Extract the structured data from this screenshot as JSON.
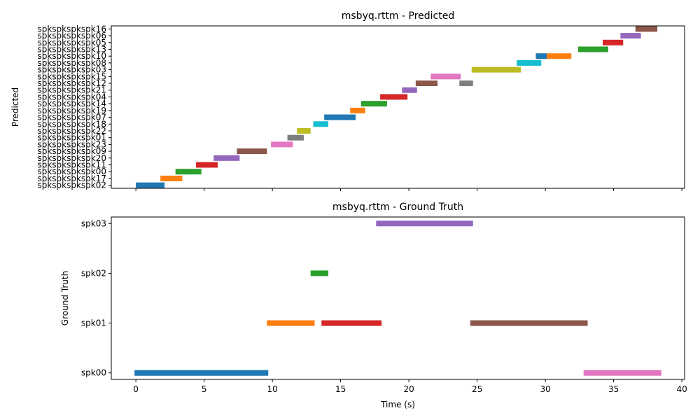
{
  "chart_data": [
    {
      "type": "timeline",
      "title": "msbyq.rttm - Predicted",
      "ylabel": "Predicted",
      "xlabel": "",
      "xlim": [
        -1.8,
        40.2
      ],
      "xticks": [
        0,
        5,
        10,
        15,
        20,
        25,
        30,
        35,
        40
      ],
      "show_xtick_labels": false,
      "categories": [
        "spkspkspkspk02",
        "spkspkspkspk17",
        "spkspkspkspk00",
        "spkspkspkspk11",
        "spkspkspkspk20",
        "spkspkspkspk09",
        "spkspkspkspk23",
        "spkspkspkspk01",
        "spkspkspkspk22",
        "spkspkspkspk18",
        "spkspkspkspk07",
        "spkspkspkspk19",
        "spkspkspkspk14",
        "spkspkspkspk04",
        "spkspkspkspk21",
        "spkspkspkspk12",
        "spkspkspkspk15",
        "spkspkspkspk03",
        "spkspkspkspk08",
        "spkspkspkspk10",
        "spkspkspkspk13",
        "spkspkspkspk05",
        "spkspkspkspk06",
        "spkspkspkspk16"
      ],
      "segments": [
        {
          "speaker": "spkspkspkspk02",
          "start": 0.0,
          "end": 2.1,
          "color": "#1f77b4"
        },
        {
          "speaker": "spkspkspkspk17",
          "start": 1.8,
          "end": 3.4,
          "color": "#ff7f0e"
        },
        {
          "speaker": "spkspkspkspk00",
          "start": 2.9,
          "end": 4.8,
          "color": "#2ca02c"
        },
        {
          "speaker": "spkspkspkspk11",
          "start": 4.4,
          "end": 6.0,
          "color": "#d62728"
        },
        {
          "speaker": "spkspkspkspk20",
          "start": 5.7,
          "end": 7.6,
          "color": "#9467bd"
        },
        {
          "speaker": "spkspkspkspk09",
          "start": 7.4,
          "end": 9.6,
          "color": "#8c564b"
        },
        {
          "speaker": "spkspkspkspk23",
          "start": 9.9,
          "end": 11.5,
          "color": "#e377c2"
        },
        {
          "speaker": "spkspkspkspk01",
          "start": 11.1,
          "end": 12.3,
          "color": "#7f7f7f"
        },
        {
          "speaker": "spkspkspkspk22",
          "start": 11.8,
          "end": 12.8,
          "color": "#bcbd22"
        },
        {
          "speaker": "spkspkspkspk18",
          "start": 13.0,
          "end": 14.1,
          "color": "#17becf"
        },
        {
          "speaker": "spkspkspkspk07",
          "start": 13.8,
          "end": 16.1,
          "color": "#1f77b4"
        },
        {
          "speaker": "spkspkspkspk19",
          "start": 15.7,
          "end": 16.8,
          "color": "#ff7f0e"
        },
        {
          "speaker": "spkspkspkspk14",
          "start": 16.5,
          "end": 18.4,
          "color": "#2ca02c"
        },
        {
          "speaker": "spkspkspkspk04",
          "start": 17.9,
          "end": 19.9,
          "color": "#d62728"
        },
        {
          "speaker": "spkspkspkspk21",
          "start": 19.5,
          "end": 20.6,
          "color": "#9467bd"
        },
        {
          "speaker": "spkspkspkspk12",
          "start": 20.5,
          "end": 22.1,
          "color": "#8c564b"
        },
        {
          "speaker": "spkspkspkspk12",
          "start": 23.7,
          "end": 24.7,
          "color": "#7f7f7f"
        },
        {
          "speaker": "spkspkspkspk15",
          "start": 21.6,
          "end": 23.8,
          "color": "#e377c2"
        },
        {
          "speaker": "spkspkspkspk03",
          "start": 24.6,
          "end": 28.2,
          "color": "#bcbd22"
        },
        {
          "speaker": "spkspkspkspk08",
          "start": 27.9,
          "end": 29.7,
          "color": "#17becf"
        },
        {
          "speaker": "spkspkspkspk10",
          "start": 29.3,
          "end": 30.1,
          "color": "#1f77b4"
        },
        {
          "speaker": "spkspkspkspk10",
          "start": 30.1,
          "end": 31.9,
          "color": "#ff7f0e"
        },
        {
          "speaker": "spkspkspkspk13",
          "start": 32.4,
          "end": 34.6,
          "color": "#2ca02c"
        },
        {
          "speaker": "spkspkspkspk05",
          "start": 34.2,
          "end": 35.7,
          "color": "#d62728"
        },
        {
          "speaker": "spkspkspkspk06",
          "start": 35.5,
          "end": 37.0,
          "color": "#9467bd"
        },
        {
          "speaker": "spkspkspkspk16",
          "start": 36.6,
          "end": 38.2,
          "color": "#8c564b"
        }
      ]
    },
    {
      "type": "timeline",
      "title": "msbyq.rttm - Ground Truth",
      "ylabel": "Ground Truth",
      "xlabel": "Time (s)",
      "xlim": [
        -1.8,
        40.2
      ],
      "xticks": [
        0,
        5,
        10,
        15,
        20,
        25,
        30,
        35,
        40
      ],
      "show_xtick_labels": true,
      "categories": [
        "spk00",
        "spk01",
        "spk02",
        "spk03"
      ],
      "segments": [
        {
          "speaker": "spk00",
          "start": -0.1,
          "end": 9.7,
          "color": "#1f77b4"
        },
        {
          "speaker": "spk01",
          "start": 9.6,
          "end": 13.1,
          "color": "#ff7f0e"
        },
        {
          "speaker": "spk02",
          "start": 12.8,
          "end": 14.1,
          "color": "#2ca02c"
        },
        {
          "speaker": "spk01",
          "start": 13.6,
          "end": 18.0,
          "color": "#d62728"
        },
        {
          "speaker": "spk03",
          "start": 17.6,
          "end": 24.7,
          "color": "#9467bd"
        },
        {
          "speaker": "spk01",
          "start": 24.5,
          "end": 33.1,
          "color": "#8c564b"
        },
        {
          "speaker": "spk00",
          "start": 32.8,
          "end": 38.5,
          "color": "#e377c2"
        }
      ]
    }
  ]
}
